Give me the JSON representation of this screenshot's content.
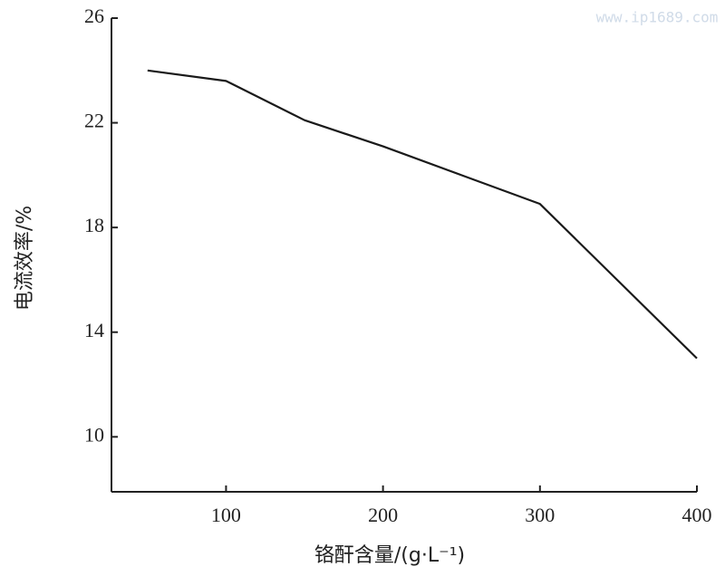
{
  "chart_data": {
    "type": "line",
    "x_label": "铬酐含量/(g·L⁻¹)",
    "y_label": "电流效率/%",
    "watermark": "www.ip1689.com",
    "x": [
      50,
      100,
      150,
      200,
      250,
      300,
      400
    ],
    "series": [
      {
        "color": "#1a1a1a",
        "values": [
          24,
          23.6,
          22.1,
          21.1,
          20,
          18.9,
          13
        ]
      }
    ],
    "xlim": [
      27,
      400
    ],
    "xticks": [
      100,
      200,
      300,
      400
    ],
    "ylim": [
      7.9,
      26
    ],
    "yticks": [
      10,
      14,
      18,
      22,
      26
    ]
  }
}
